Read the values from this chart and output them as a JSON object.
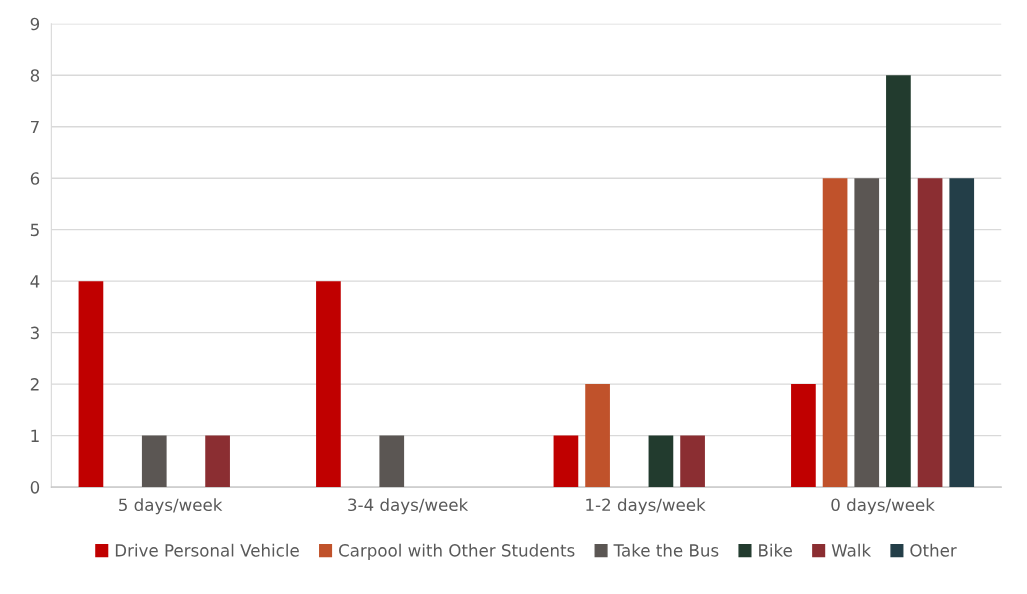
{
  "chart_data": {
    "type": "bar",
    "categories": [
      "5 days/week",
      "3-4 days/week",
      "1-2 days/week",
      "0 days/week"
    ],
    "series": [
      {
        "name": "Drive Personal Vehicle",
        "color": "#c00000",
        "values": [
          4,
          4,
          1,
          2
        ]
      },
      {
        "name": "Carpool with Other Students",
        "color": "#c0522b",
        "values": [
          0,
          0,
          2,
          6
        ]
      },
      {
        "name": "Take the Bus",
        "color": "#5b5653",
        "values": [
          1,
          1,
          0,
          6
        ]
      },
      {
        "name": "Bike",
        "color": "#223b2e",
        "values": [
          0,
          0,
          1,
          8
        ]
      },
      {
        "name": "Walk",
        "color": "#8b2e32",
        "values": [
          1,
          0,
          1,
          6
        ]
      },
      {
        "name": "Other",
        "color": "#233e48",
        "values": [
          0,
          0,
          0,
          6
        ]
      }
    ],
    "ylim": [
      0,
      9
    ],
    "yticks": [
      0,
      1,
      2,
      3,
      4,
      5,
      6,
      7,
      8,
      9
    ],
    "grid": "y",
    "legend": "bottom"
  }
}
